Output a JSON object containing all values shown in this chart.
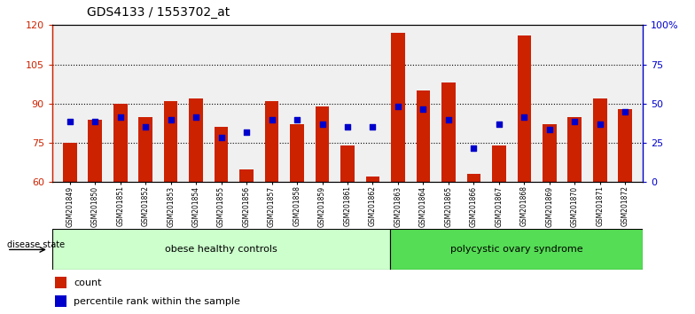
{
  "title": "GDS4133 / 1553702_at",
  "samples": [
    "GSM201849",
    "GSM201850",
    "GSM201851",
    "GSM201852",
    "GSM201853",
    "GSM201854",
    "GSM201855",
    "GSM201856",
    "GSM201857",
    "GSM201858",
    "GSM201859",
    "GSM201861",
    "GSM201862",
    "GSM201863",
    "GSM201864",
    "GSM201865",
    "GSM201866",
    "GSM201867",
    "GSM201868",
    "GSM201869",
    "GSM201870",
    "GSM201871",
    "GSM201872"
  ],
  "counts": [
    75,
    84,
    90,
    85,
    91,
    92,
    81,
    65,
    91,
    82,
    89,
    74,
    62,
    117,
    95,
    98,
    63,
    74,
    116,
    82,
    85,
    92,
    88
  ],
  "percentiles_left": [
    83,
    83,
    85,
    81,
    84,
    85,
    77,
    79,
    84,
    84,
    82,
    81,
    81,
    89,
    88,
    84,
    73,
    82,
    85,
    80,
    83,
    82,
    87
  ],
  "group1_label": "obese healthy controls",
  "group1_count": 13,
  "group2_label": "polycystic ovary syndrome",
  "group2_count": 10,
  "ylim_left": [
    60,
    120
  ],
  "ylim_right": [
    0,
    100
  ],
  "yticks_left": [
    60,
    75,
    90,
    105,
    120
  ],
  "yticks_right": [
    0,
    25,
    50,
    75,
    100
  ],
  "yticklabels_right": [
    "0",
    "25",
    "50",
    "75",
    "100%"
  ],
  "grid_ticks": [
    75,
    90,
    105
  ],
  "bar_color": "#cc2200",
  "percentile_color": "#0000cc",
  "bar_bottom": 60,
  "axis_color_left": "#cc2200",
  "axis_color_right": "#0000cc",
  "legend_count_label": "count",
  "legend_pct_label": "percentile rank within the sample",
  "group1_color": "#ccffcc",
  "group2_color": "#55dd55",
  "disease_state_label": "disease state",
  "bg_color": "#f0f0f0",
  "bar_width": 0.55
}
